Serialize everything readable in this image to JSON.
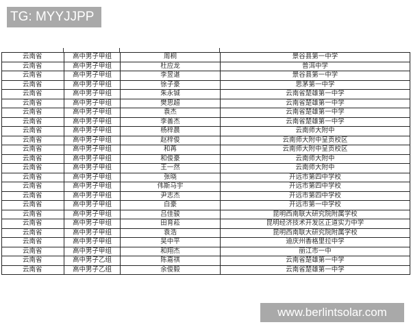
{
  "watermark_top": "TG: MYYJJPP",
  "watermark_bottom": "www.berlintsolar.com",
  "table": {
    "rows": [
      [
        "云南省",
        "高中男子甲组",
        "周桐",
        "景谷县第一中学"
      ],
      [
        "云南省",
        "高中男子甲组",
        "杜应龙",
        "普洱中学"
      ],
      [
        "云南省",
        "高中男子甲组",
        "李昱谌",
        "景谷县第一中学"
      ],
      [
        "云南省",
        "高中男子甲组",
        "徐子豪",
        "思茅第一中学"
      ],
      [
        "云南省",
        "高中男子甲组",
        "朱永铖",
        "云南省楚雄第一中学"
      ],
      [
        "云南省",
        "高中男子甲组",
        "樊思超",
        "云南省楚雄第一中学"
      ],
      [
        "云南省",
        "高中男子甲组",
        "袁杰",
        "云南省楚雄第一中学"
      ],
      [
        "云南省",
        "高中男子甲组",
        "李善杰",
        "云南省楚雄第一中学"
      ],
      [
        "云南省",
        "高中男子甲组",
        "杨梓晨",
        "云南师大附中"
      ],
      [
        "云南省",
        "高中男子甲组",
        "赵梓俊",
        "云南师大附中呈贡校区"
      ],
      [
        "云南省",
        "高中男子甲组",
        "和苒",
        "云南师大附中呈贡校区"
      ],
      [
        "云南省",
        "高中男子甲组",
        "和俊豪",
        "云南师大附中"
      ],
      [
        "云南省",
        "高中男子甲组",
        "王一然",
        "云南师大附中"
      ],
      [
        "云南省",
        "高中男子甲组",
        "张晓",
        "开远市第四中学校"
      ],
      [
        "云南省",
        "高中男子甲组",
        "伟斯马宇",
        "开远市第四中学校"
      ],
      [
        "云南省",
        "高中男子甲组",
        "尹志杰",
        "开远市第四中学校"
      ],
      [
        "云南省",
        "高中男子甲组",
        "白豪",
        "开远市第一中学校"
      ],
      [
        "云南省",
        "高中男子甲组",
        "吕佳骏",
        "昆明西南联大研究院附属学校"
      ],
      [
        "云南省",
        "高中男子甲组",
        "田育菘",
        "昆明经济技术开发区正道实力中学"
      ],
      [
        "云南省",
        "高中男子甲组",
        "袁浩",
        "昆明西南联大研究院附属学校"
      ],
      [
        "云南省",
        "高中男子甲组",
        "吴中平",
        "迪庆州香格里拉中学"
      ],
      [
        "云南省",
        "高中男子甲组",
        "和翔杰",
        "丽江市一中"
      ],
      [
        "云南省",
        "高中男子乙组",
        "陈嘉祺",
        "云南省楚雄第一中学"
      ],
      [
        "云南省",
        "高中男子乙组",
        "余俊毅",
        "云南省楚雄第一中学"
      ]
    ]
  }
}
